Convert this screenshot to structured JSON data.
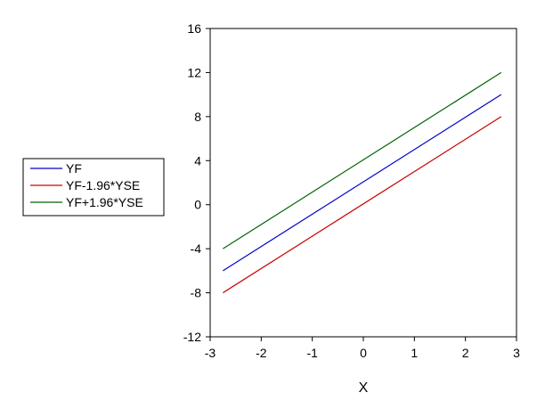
{
  "chart_data": {
    "type": "line",
    "title": "",
    "xlabel": "X",
    "ylabel": "",
    "xlim": [
      -3,
      3
    ],
    "ylim": [
      -12,
      16
    ],
    "xticks": [
      -3,
      -2,
      -1,
      0,
      1,
      2,
      3
    ],
    "yticks": [
      -12,
      -8,
      -4,
      0,
      4,
      8,
      12,
      16
    ],
    "grid": false,
    "legend_position": "left",
    "series": [
      {
        "name": "YF",
        "color": "#0000cc",
        "x": [
          -2.75,
          2.7
        ],
        "y": [
          -6,
          10
        ]
      },
      {
        "name": "YF-1.96*YSE",
        "color": "#cc0000",
        "x": [
          -2.75,
          2.7
        ],
        "y": [
          -8,
          8
        ]
      },
      {
        "name": "YF+1.96*YSE",
        "color": "#006400",
        "x": [
          -2.75,
          2.7
        ],
        "y": [
          -4,
          12
        ]
      }
    ]
  }
}
